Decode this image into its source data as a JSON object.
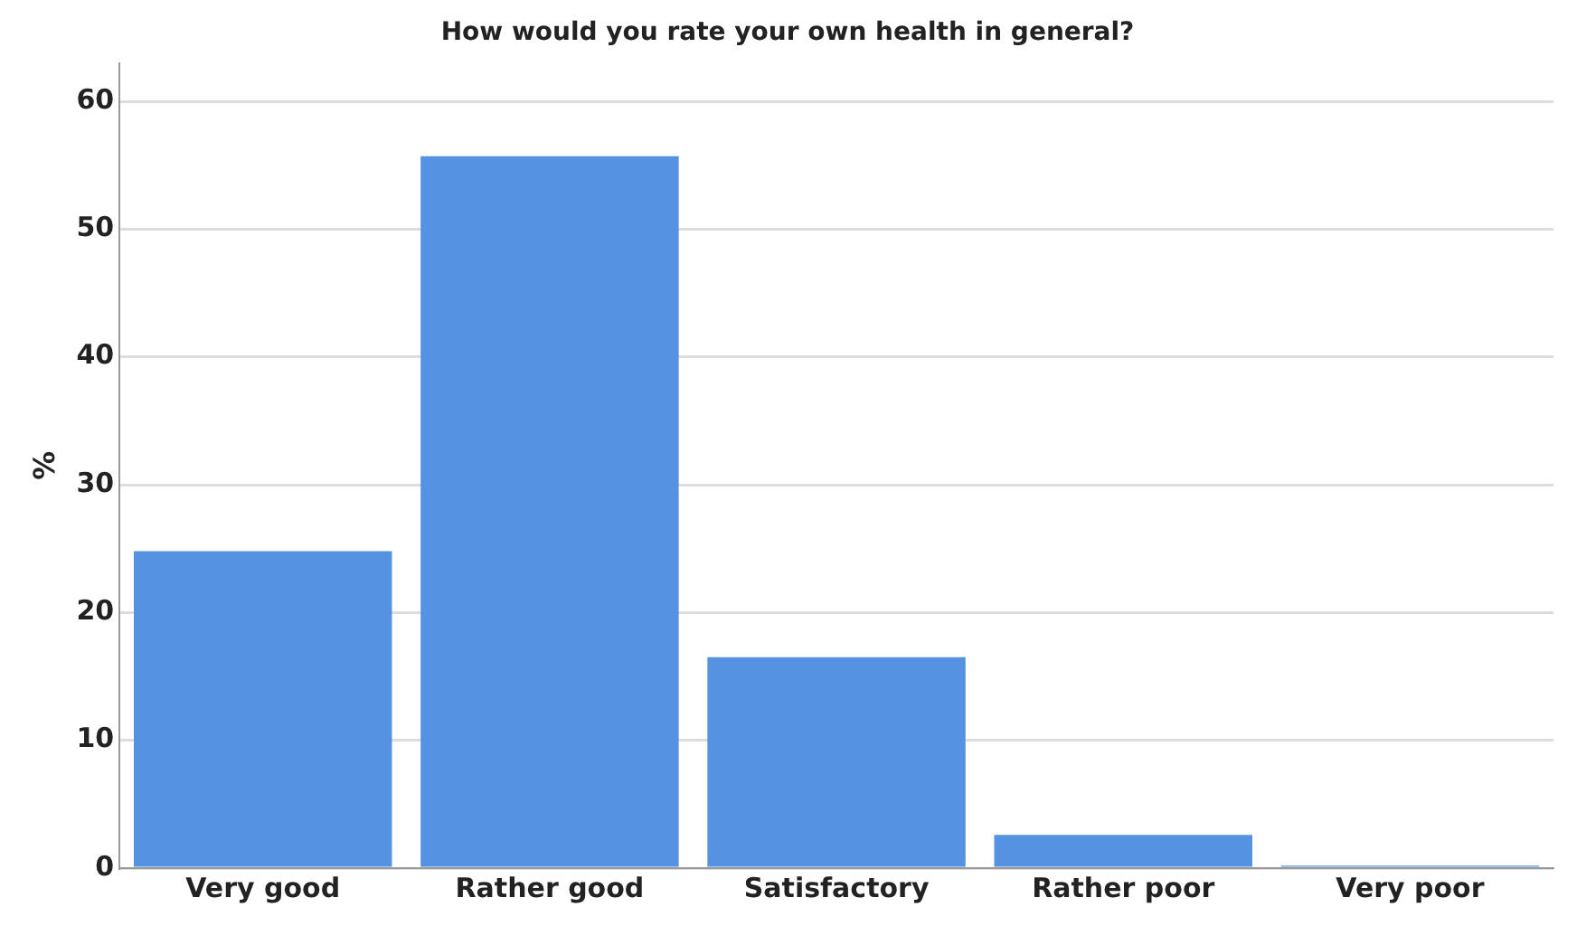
{
  "chart_data": {
    "type": "bar",
    "title": "How would you rate your own health in general?",
    "ylabel": "%",
    "categories": [
      "Very good",
      "Rather good",
      "Satisfactory",
      "Rather poor",
      "Very poor"
    ],
    "values": [
      24.8,
      55.7,
      16.5,
      2.6,
      0.2
    ],
    "color": "#5592e2",
    "ylim": [
      0,
      63
    ],
    "yticks": [
      0,
      10,
      20,
      30,
      40,
      50,
      60
    ],
    "grid": "y",
    "legend": false
  }
}
